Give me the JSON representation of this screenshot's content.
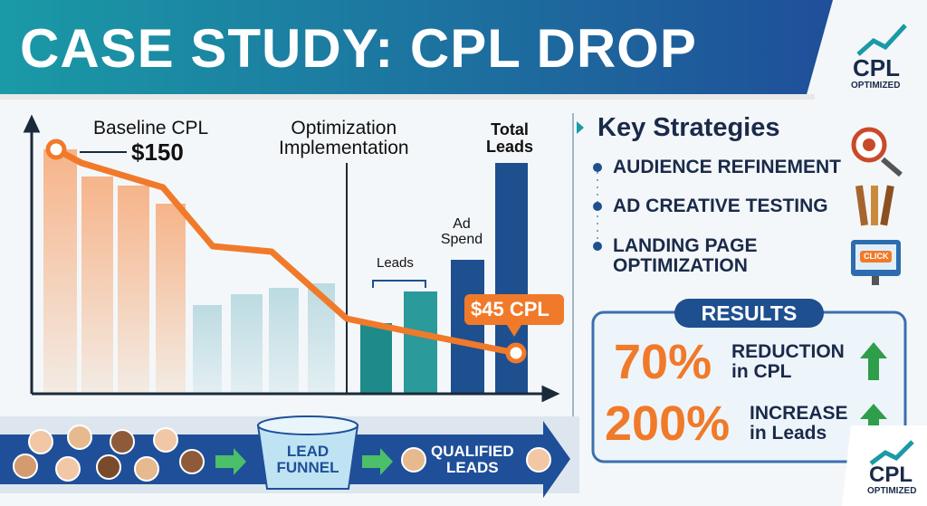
{
  "header": {
    "title": "CASE STUDY: CPL DROP"
  },
  "logo_top": {
    "mark": "CPL",
    "sub": "OPTIMIZED"
  },
  "graph": {
    "baseline_label": "Baseline CPL",
    "baseline_value": "$150",
    "optimization_label": [
      "Optimization",
      "Implementation"
    ],
    "total_leads_label": [
      "Total",
      "Leads"
    ],
    "ad_spend_label": [
      "Ad",
      "Spend"
    ],
    "leads_label": "Leads",
    "final_value": "$45 CPL"
  },
  "strategies": {
    "title": "Key Strategies",
    "items": [
      [
        "AUDIENCE REFINEMENT"
      ],
      [
        "AD CREATIVE TESTING"
      ],
      [
        "LANDING PAGE",
        "OPTIMIZATION"
      ]
    ],
    "click_icon": "CLICK"
  },
  "results": {
    "title": "RESULTS",
    "rows": [
      {
        "value": "70%",
        "label": [
          "REDUCTION",
          "in CPL"
        ]
      },
      {
        "value": "200%",
        "label": [
          "INCREASE",
          "in Leads"
        ]
      }
    ]
  },
  "funnel": {
    "label": [
      "LEAD",
      "FUNNEL"
    ],
    "output": [
      "QUALIFIED",
      "LEADS"
    ]
  },
  "logo_bottom": {
    "mark": "CPL",
    "sub": "OPTIMIZED"
  }
}
